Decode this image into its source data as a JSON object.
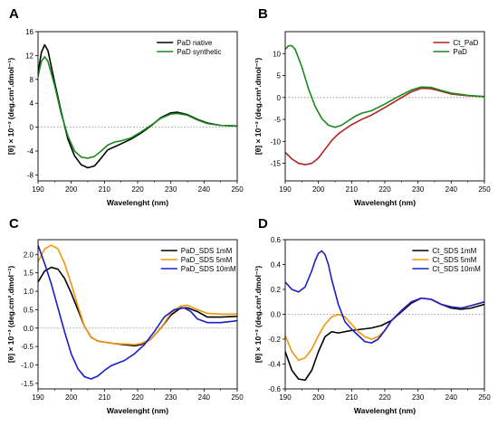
{
  "colors": {
    "black": "#000000",
    "green": "#1a8a1a",
    "red": "#b22222",
    "orange": "#f0960a",
    "blue": "#1c1cc8",
    "zero_line": "#8a8a8a"
  },
  "chart_data": [
    {
      "panel": "A",
      "type": "line",
      "xlabel": "Wavelenght (nm)",
      "ylabel": "[θ] × 10⁻³ (deg.cm².dmol⁻¹)",
      "xlim": [
        190,
        250
      ],
      "ylim": [
        -9,
        16
      ],
      "x_ticks": [
        190,
        200,
        210,
        220,
        230,
        240,
        250
      ],
      "y_ticks": [
        -8,
        -4,
        0,
        4,
        8,
        12,
        16
      ],
      "zero_line": true,
      "legend_position": "top-right",
      "series": [
        {
          "name": "PaD native",
          "color": "#000000",
          "x": [
            190,
            191,
            192,
            193,
            195,
            197,
            199,
            201,
            203,
            205,
            207,
            209,
            211,
            213,
            215,
            218,
            221,
            224,
            227,
            230,
            232,
            235,
            238,
            241,
            245,
            250
          ],
          "y": [
            9.0,
            12.5,
            13.8,
            12.8,
            7.5,
            2.5,
            -2.0,
            -4.8,
            -6.3,
            -6.8,
            -6.5,
            -5.2,
            -3.8,
            -3.3,
            -2.8,
            -2.0,
            -1.0,
            0.2,
            1.6,
            2.4,
            2.5,
            2.1,
            1.3,
            0.7,
            0.3,
            0.2
          ]
        },
        {
          "name": "PaD synthetic",
          "color": "#1a8a1a",
          "x": [
            190,
            191,
            192,
            193,
            195,
            197,
            199,
            201,
            203,
            205,
            207,
            209,
            211,
            213,
            215,
            218,
            221,
            224,
            227,
            230,
            232,
            235,
            238,
            241,
            245,
            250
          ],
          "y": [
            8.5,
            11.0,
            11.8,
            11.0,
            7.0,
            2.2,
            -1.5,
            -4.0,
            -5.0,
            -5.2,
            -4.9,
            -4.0,
            -3.0,
            -2.5,
            -2.3,
            -1.8,
            -0.8,
            0.3,
            1.5,
            2.2,
            2.3,
            2.0,
            1.2,
            0.6,
            0.3,
            0.2
          ]
        }
      ]
    },
    {
      "panel": "B",
      "type": "line",
      "xlabel": "Wavelenght (nm)",
      "ylabel": "[θ] × 10⁻³ (deg.cm².dmol⁻¹)",
      "xlim": [
        190,
        250
      ],
      "ylim": [
        -19,
        15
      ],
      "x_ticks": [
        190,
        200,
        210,
        220,
        230,
        240,
        250
      ],
      "y_ticks": [
        -15,
        -10,
        -5,
        0,
        5,
        10
      ],
      "zero_line": true,
      "legend_position": "top-right",
      "series": [
        {
          "name": "Ct_PaD",
          "color": "#b22222",
          "x": [
            190,
            192,
            194,
            196,
            198,
            200,
            202,
            204,
            206,
            208,
            210,
            213,
            216,
            220,
            224,
            228,
            231,
            234,
            237,
            240,
            245,
            250
          ],
          "y": [
            -12.5,
            -14.0,
            -15.0,
            -15.3,
            -15.0,
            -13.8,
            -11.8,
            -9.8,
            -8.3,
            -7.2,
            -6.2,
            -5.0,
            -4.0,
            -2.3,
            -0.5,
            1.3,
            2.1,
            2.0,
            1.4,
            0.8,
            0.4,
            0.2
          ]
        },
        {
          "name": "PaD",
          "color": "#1a8a1a",
          "x": [
            190,
            191,
            192,
            193,
            195,
            197,
            199,
            201,
            203,
            205,
            207,
            209,
            211,
            213,
            216,
            220,
            224,
            228,
            231,
            234,
            237,
            240,
            245,
            250
          ],
          "y": [
            11.0,
            11.8,
            11.8,
            11.0,
            7.0,
            2.0,
            -2.0,
            -4.8,
            -6.3,
            -6.8,
            -6.3,
            -5.3,
            -4.3,
            -3.6,
            -3.0,
            -1.5,
            0.2,
            1.7,
            2.4,
            2.3,
            1.6,
            1.0,
            0.5,
            0.2
          ]
        }
      ]
    },
    {
      "panel": "C",
      "type": "line",
      "xlabel": "Wavelenght (nm)",
      "ylabel": "[θ] × 10⁻³ (deg.cm².dmol⁻¹)",
      "xlim": [
        190,
        250
      ],
      "ylim": [
        -1.65,
        2.4
      ],
      "x_ticks": [
        190,
        200,
        210,
        220,
        230,
        240,
        250
      ],
      "y_ticks": [
        -1.5,
        -1.0,
        -0.5,
        0.0,
        0.5,
        1.0,
        1.5,
        2.0
      ],
      "y_tick_labels": [
        "-1.5",
        "-1.0",
        "-0.5",
        "0.0",
        "0.5",
        "1.0",
        "1.5",
        "2.0"
      ],
      "zero_line": true,
      "legend_position": "top-right",
      "series": [
        {
          "name": "PaD_SDS 1mM",
          "color": "#000000",
          "x": [
            190,
            192,
            194,
            196,
            198,
            200,
            202,
            204,
            206,
            208,
            210,
            213,
            216,
            219,
            221,
            224,
            227,
            230,
            233,
            235,
            238,
            241,
            245,
            250
          ],
          "y": [
            1.25,
            1.55,
            1.65,
            1.6,
            1.35,
            0.95,
            0.5,
            0.05,
            -0.25,
            -0.35,
            -0.38,
            -0.42,
            -0.45,
            -0.48,
            -0.45,
            -0.3,
            0.0,
            0.35,
            0.55,
            0.55,
            0.45,
            0.3,
            0.3,
            0.32
          ]
        },
        {
          "name": "PaD_SDS 5mM",
          "color": "#f0960a",
          "x": [
            190,
            192,
            194,
            196,
            198,
            200,
            202,
            204,
            206,
            208,
            210,
            213,
            216,
            219,
            221,
            224,
            227,
            230,
            233,
            235,
            238,
            241,
            245,
            250
          ],
          "y": [
            1.8,
            2.15,
            2.25,
            2.15,
            1.75,
            1.2,
            0.6,
            0.05,
            -0.25,
            -0.35,
            -0.38,
            -0.42,
            -0.43,
            -0.45,
            -0.42,
            -0.3,
            0.0,
            0.4,
            0.6,
            0.62,
            0.5,
            0.4,
            0.38,
            0.38
          ]
        },
        {
          "name": "PaD_SDS 10mM",
          "color": "#1c1cc8",
          "x": [
            190,
            192,
            194,
            196,
            198,
            200,
            202,
            204,
            206,
            208,
            210,
            212,
            214,
            216,
            219,
            222,
            225,
            228,
            231,
            234,
            236,
            238,
            241,
            245,
            250
          ],
          "y": [
            2.25,
            1.75,
            1.2,
            0.55,
            -0.1,
            -0.7,
            -1.1,
            -1.32,
            -1.38,
            -1.3,
            -1.15,
            -1.02,
            -0.95,
            -0.88,
            -0.7,
            -0.45,
            -0.1,
            0.3,
            0.5,
            0.55,
            0.45,
            0.25,
            0.15,
            0.15,
            0.2
          ]
        }
      ]
    },
    {
      "panel": "D",
      "type": "line",
      "xlabel": "Wavelenght (nm)",
      "ylabel": "[θ] × 10⁻³ (deg.cm².dmol⁻¹)",
      "xlim": [
        190,
        250
      ],
      "ylim": [
        -0.6,
        0.6
      ],
      "x_ticks": [
        190,
        200,
        210,
        220,
        230,
        240,
        250
      ],
      "y_ticks": [
        -0.6,
        -0.4,
        -0.2,
        0.0,
        0.2,
        0.4,
        0.6
      ],
      "y_tick_labels": [
        "-0.6",
        "-0.4",
        "-0.2",
        "0.0",
        "0.2",
        "0.4",
        "0.6"
      ],
      "zero_line": true,
      "legend_position": "top-right",
      "series": [
        {
          "name": "Ct_SDS 1mM",
          "color": "#000000",
          "x": [
            190,
            192,
            194,
            196,
            198,
            200,
            202,
            204,
            206,
            208,
            210,
            213,
            216,
            219,
            222,
            225,
            228,
            231,
            234,
            237,
            240,
            243,
            246,
            250
          ],
          "y": [
            -0.3,
            -0.45,
            -0.52,
            -0.53,
            -0.45,
            -0.3,
            -0.18,
            -0.14,
            -0.15,
            -0.14,
            -0.13,
            -0.12,
            -0.11,
            -0.09,
            -0.05,
            0.02,
            0.09,
            0.13,
            0.12,
            0.08,
            0.05,
            0.04,
            0.05,
            0.08
          ]
        },
        {
          "name": "Ct_SDS 5mM",
          "color": "#f0960a",
          "x": [
            190,
            192,
            194,
            196,
            198,
            200,
            202,
            204,
            206,
            208,
            210,
            212,
            214,
            216,
            218,
            220,
            222,
            225,
            228,
            231,
            234,
            237,
            240,
            243,
            246,
            250
          ],
          "y": [
            -0.17,
            -0.3,
            -0.37,
            -0.35,
            -0.28,
            -0.17,
            -0.08,
            -0.02,
            0.0,
            -0.02,
            -0.08,
            -0.14,
            -0.18,
            -0.2,
            -0.18,
            -0.13,
            -0.05,
            0.03,
            0.1,
            0.13,
            0.12,
            0.08,
            0.06,
            0.05,
            0.07,
            0.1
          ]
        },
        {
          "name": "Ct_SDS 10mM",
          "color": "#1c1cc8",
          "x": [
            190,
            192,
            194,
            196,
            198,
            199,
            200,
            201,
            202,
            203,
            204,
            206,
            208,
            210,
            212,
            214,
            216,
            218,
            220,
            222,
            225,
            228,
            231,
            234,
            237,
            240,
            243,
            246,
            250
          ],
          "y": [
            0.26,
            0.2,
            0.18,
            0.22,
            0.35,
            0.43,
            0.49,
            0.51,
            0.48,
            0.4,
            0.28,
            0.08,
            -0.06,
            -0.12,
            -0.17,
            -0.22,
            -0.23,
            -0.2,
            -0.13,
            -0.05,
            0.03,
            0.1,
            0.13,
            0.12,
            0.08,
            0.06,
            0.05,
            0.07,
            0.1
          ]
        }
      ]
    }
  ]
}
